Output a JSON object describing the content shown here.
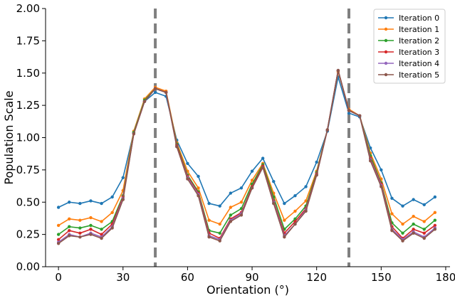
{
  "chart_data": {
    "type": "line",
    "title": "",
    "xlabel": "Orientation (°)",
    "ylabel": "Population Scale",
    "xlim": [
      -6,
      182
    ],
    "ylim": [
      0,
      2.0
    ],
    "xticks": [
      0,
      30,
      60,
      90,
      120,
      150,
      180
    ],
    "yticks": [
      0.0,
      0.25,
      0.5,
      0.75,
      1.0,
      1.25,
      1.5,
      1.75,
      2.0
    ],
    "ytick_labels": [
      "0.00",
      "0.25",
      "0.50",
      "0.75",
      "1.00",
      "1.25",
      "1.50",
      "1.75",
      "2.00"
    ],
    "grid": false,
    "legend_position": "top-right",
    "vlines": [
      {
        "x": 45,
        "style": "dashed",
        "color": "#808080"
      },
      {
        "x": 135,
        "style": "dashed",
        "color": "#808080"
      }
    ],
    "x": [
      0,
      5,
      10,
      15,
      20,
      25,
      30,
      35,
      40,
      45,
      50,
      55,
      60,
      65,
      70,
      75,
      80,
      85,
      90,
      95,
      100,
      105,
      110,
      115,
      120,
      125,
      130,
      135,
      140,
      145,
      150,
      155,
      160,
      165,
      170,
      175
    ],
    "series": [
      {
        "name": "Iteration 0",
        "color": "#1f77b4",
        "values": [
          0.46,
          0.5,
          0.49,
          0.51,
          0.49,
          0.54,
          0.69,
          1.04,
          1.28,
          1.35,
          1.32,
          0.98,
          0.8,
          0.7,
          0.49,
          0.47,
          0.57,
          0.61,
          0.74,
          0.84,
          0.66,
          0.49,
          0.55,
          0.62,
          0.81,
          1.05,
          1.47,
          1.19,
          1.16,
          0.92,
          0.75,
          0.53,
          0.47,
          0.52,
          0.48,
          0.54
        ]
      },
      {
        "name": "Iteration 1",
        "color": "#ff7f0e",
        "values": [
          0.32,
          0.37,
          0.36,
          0.38,
          0.35,
          0.42,
          0.59,
          1.05,
          1.3,
          1.39,
          1.36,
          0.96,
          0.74,
          0.61,
          0.36,
          0.33,
          0.46,
          0.5,
          0.67,
          0.8,
          0.57,
          0.36,
          0.43,
          0.51,
          0.74,
          1.06,
          1.51,
          1.22,
          1.17,
          0.88,
          0.68,
          0.41,
          0.33,
          0.39,
          0.35,
          0.42
        ]
      },
      {
        "name": "Iteration 2",
        "color": "#2ca02c",
        "values": [
          0.25,
          0.31,
          0.3,
          0.32,
          0.29,
          0.35,
          0.55,
          1.04,
          1.29,
          1.38,
          1.35,
          0.95,
          0.71,
          0.58,
          0.28,
          0.26,
          0.4,
          0.45,
          0.64,
          0.79,
          0.54,
          0.29,
          0.37,
          0.47,
          0.73,
          1.06,
          1.52,
          1.21,
          1.17,
          0.86,
          0.65,
          0.34,
          0.26,
          0.33,
          0.29,
          0.36
        ]
      },
      {
        "name": "Iteration 3",
        "color": "#d62728",
        "values": [
          0.21,
          0.28,
          0.26,
          0.29,
          0.25,
          0.33,
          0.54,
          1.03,
          1.28,
          1.38,
          1.35,
          0.94,
          0.7,
          0.57,
          0.26,
          0.22,
          0.37,
          0.42,
          0.62,
          0.78,
          0.51,
          0.26,
          0.35,
          0.45,
          0.72,
          1.06,
          1.52,
          1.21,
          1.17,
          0.84,
          0.64,
          0.31,
          0.22,
          0.29,
          0.26,
          0.32
        ]
      },
      {
        "name": "Iteration 4",
        "color": "#9467bd",
        "values": [
          0.19,
          0.25,
          0.23,
          0.26,
          0.23,
          0.31,
          0.53,
          1.03,
          1.28,
          1.38,
          1.35,
          0.93,
          0.69,
          0.56,
          0.24,
          0.21,
          0.36,
          0.41,
          0.61,
          0.77,
          0.5,
          0.24,
          0.33,
          0.44,
          0.71,
          1.06,
          1.52,
          1.21,
          1.17,
          0.83,
          0.63,
          0.29,
          0.21,
          0.27,
          0.23,
          0.3
        ]
      },
      {
        "name": "Iteration 5",
        "color": "#8c564b",
        "values": [
          0.18,
          0.24,
          0.23,
          0.25,
          0.22,
          0.3,
          0.52,
          1.03,
          1.28,
          1.38,
          1.35,
          0.93,
          0.68,
          0.55,
          0.23,
          0.2,
          0.35,
          0.4,
          0.61,
          0.77,
          0.49,
          0.23,
          0.33,
          0.43,
          0.71,
          1.06,
          1.52,
          1.21,
          1.17,
          0.82,
          0.62,
          0.28,
          0.2,
          0.26,
          0.22,
          0.29
        ]
      }
    ]
  }
}
